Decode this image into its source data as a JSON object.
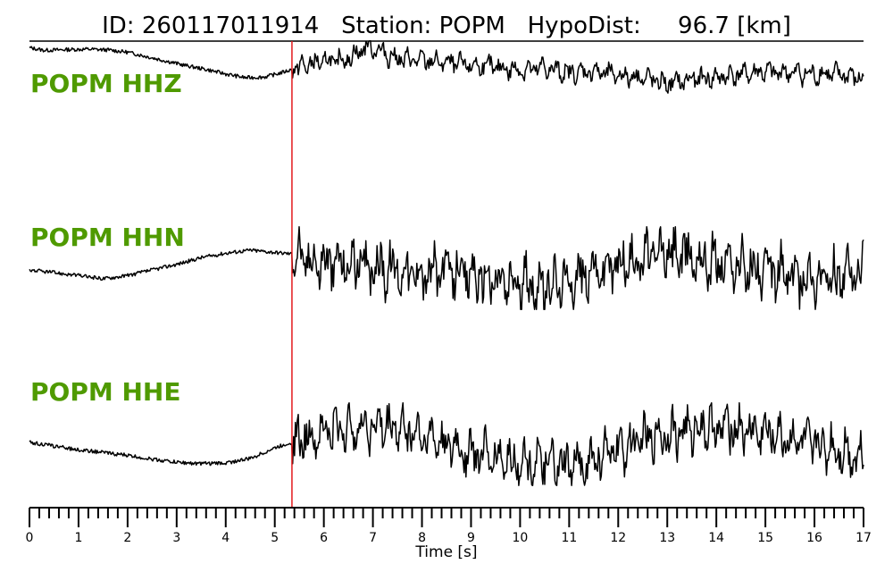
{
  "chart_data": {
    "type": "line",
    "title": "ID: 260117011914   Station: POPM   HypoDist:     96.7 [km]",
    "xlabel": "Time [s]",
    "xlim": [
      0,
      17
    ],
    "x_tick_labels": [
      "0",
      "1",
      "2",
      "3",
      "4",
      "5",
      "6",
      "7",
      "8",
      "9",
      "10",
      "11",
      "12",
      "13",
      "14",
      "15",
      "16",
      "17"
    ],
    "pick_time": 5.35,
    "pick_color": "#e41a1c",
    "label_color": "#4f9a00",
    "series": [
      {
        "name": "POPM HHZ",
        "x": [
          0,
          0.3,
          0.8,
          1.2,
          1.6,
          2.0,
          2.4,
          2.8,
          3.2,
          3.6,
          4.0,
          4.4,
          4.8,
          5.1,
          5.35,
          5.6,
          6.0,
          6.5,
          6.9,
          7.5,
          8.0,
          8.5,
          9.0,
          9.5,
          10.0,
          10.5,
          11.0,
          11.5,
          12.0,
          12.5,
          13.0,
          13.5,
          14.0,
          14.5,
          15.0,
          15.5,
          16.0,
          16.5,
          17.0
        ],
        "values": [
          0.92,
          0.85,
          0.87,
          0.88,
          0.86,
          0.8,
          0.68,
          0.56,
          0.44,
          0.34,
          0.22,
          0.12,
          0.14,
          0.24,
          0.34,
          0.45,
          0.55,
          0.62,
          0.98,
          0.62,
          0.58,
          0.52,
          0.45,
          0.4,
          0.32,
          0.38,
          0.24,
          0.3,
          0.18,
          0.14,
          -0.05,
          0.08,
          0.12,
          0.22,
          0.28,
          0.26,
          0.2,
          0.22,
          0.1
        ],
        "amplitude": 0.3
      },
      {
        "name": "POPM HHN",
        "x": [
          0,
          0.5,
          1.0,
          1.5,
          2.0,
          2.5,
          3.0,
          3.5,
          4.0,
          4.5,
          5.0,
          5.35,
          5.7,
          6.0,
          6.5,
          7.0,
          7.5,
          8.0,
          8.5,
          9.0,
          9.5,
          10.0,
          10.5,
          11.0,
          11.5,
          12.0,
          12.5,
          13.0,
          13.5,
          14.0,
          14.5,
          15.0,
          15.5,
          16.0,
          16.5,
          17.0
        ],
        "values": [
          -0.05,
          -0.12,
          -0.2,
          -0.28,
          -0.2,
          -0.05,
          0.1,
          0.28,
          0.4,
          0.48,
          0.42,
          0.38,
          0.2,
          0.15,
          0.1,
          0.05,
          -0.05,
          -0.15,
          -0.1,
          -0.2,
          -0.35,
          -0.45,
          -0.5,
          -0.35,
          -0.1,
          0.1,
          0.25,
          0.4,
          0.3,
          0.15,
          0.05,
          -0.1,
          -0.2,
          -0.25,
          -0.3,
          -0.1
        ],
        "amplitude": 0.8
      },
      {
        "name": "POPM HHE",
        "x": [
          0,
          0.5,
          1.0,
          1.5,
          2.0,
          2.5,
          3.0,
          3.5,
          4.0,
          4.5,
          5.0,
          5.35,
          5.7,
          6.0,
          6.5,
          7.0,
          7.5,
          8.0,
          8.5,
          9.0,
          9.5,
          10.0,
          10.5,
          11.0,
          11.5,
          12.0,
          12.5,
          13.0,
          13.5,
          14.0,
          14.5,
          15.0,
          15.5,
          16.0,
          16.5,
          17.0
        ],
        "values": [
          0.05,
          -0.05,
          -0.15,
          -0.22,
          -0.3,
          -0.4,
          -0.48,
          -0.52,
          -0.5,
          -0.38,
          -0.1,
          0.05,
          0.2,
          0.35,
          0.45,
          0.5,
          0.45,
          0.25,
          0.0,
          -0.2,
          -0.35,
          -0.45,
          -0.55,
          -0.6,
          -0.4,
          -0.15,
          0.1,
          0.3,
          0.4,
          0.45,
          0.4,
          0.3,
          0.15,
          0.0,
          -0.15,
          -0.35
        ],
        "amplitude": 0.7
      }
    ]
  }
}
